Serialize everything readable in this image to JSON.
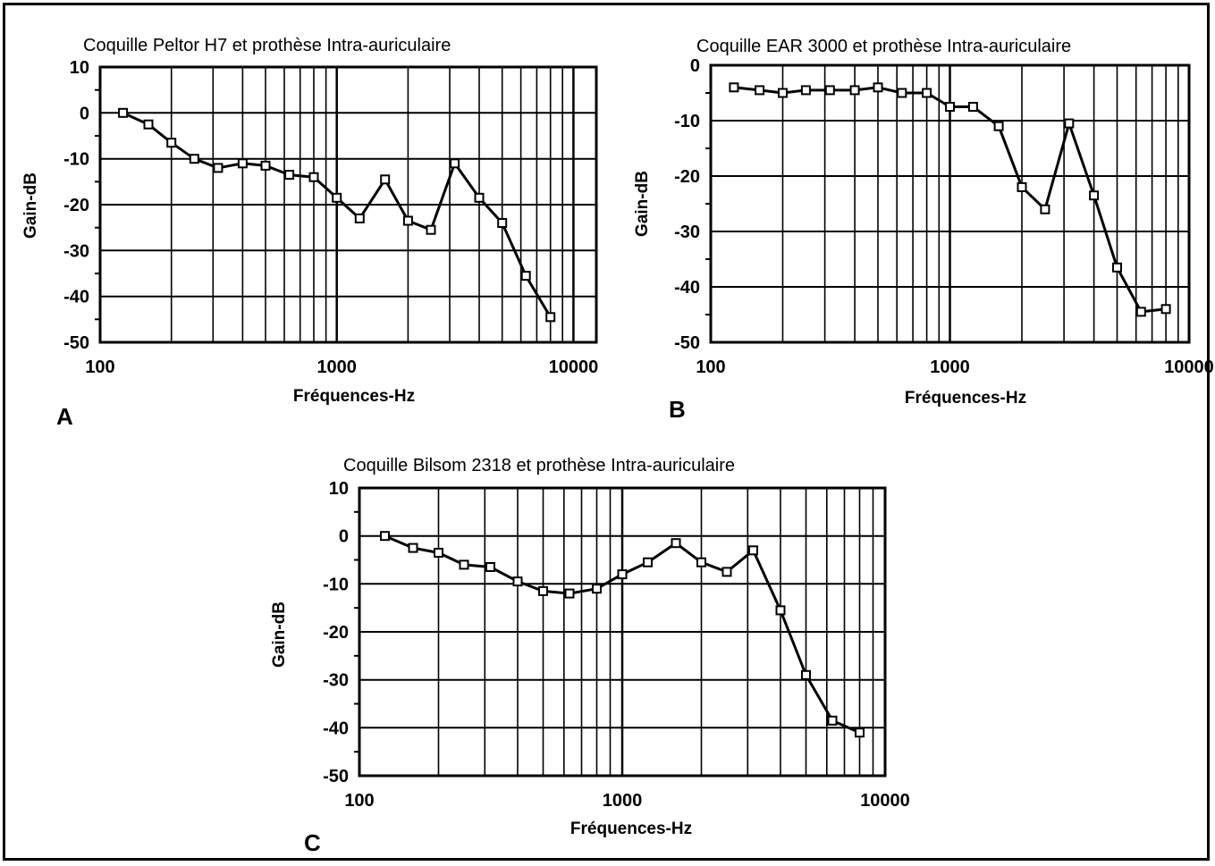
{
  "chart_data": [
    {
      "panel": "A",
      "type": "line",
      "title": "Coquille Peltor H7 et prothèse Intra-auriculaire",
      "xlabel": "Fréquences-Hz",
      "ylabel": "Gain-dB",
      "xscale": "log",
      "xlim": [
        100,
        12500
      ],
      "ylim": [
        -50,
        10
      ],
      "xticks": [
        100,
        1000,
        10000
      ],
      "yticks": [
        10,
        0,
        -10,
        -20,
        -30,
        -40,
        -50
      ],
      "x": [
        125,
        160,
        200,
        250,
        315,
        400,
        500,
        630,
        800,
        1000,
        1250,
        1600,
        2000,
        2500,
        3150,
        4000,
        5000,
        6300,
        8000
      ],
      "y": [
        0,
        -2.5,
        -6.5,
        -10,
        -12,
        -11,
        -11.5,
        -13.5,
        -14,
        -18.5,
        -23,
        -14.5,
        -23.5,
        -25.5,
        -11,
        -18.5,
        -24,
        -35.5,
        -44.5
      ]
    },
    {
      "panel": "B",
      "type": "line",
      "title": "Coquille EAR 3000 et prothèse Intra-auriculaire",
      "xlabel": "Fréquences-Hz",
      "ylabel": "Gain-dB",
      "xscale": "log",
      "xlim": [
        100,
        10000
      ],
      "ylim": [
        -50,
        0
      ],
      "xticks": [
        100,
        1000,
        10000
      ],
      "yticks": [
        0,
        -10,
        -20,
        -30,
        -40,
        -50
      ],
      "x": [
        125,
        160,
        200,
        250,
        315,
        400,
        500,
        630,
        800,
        1000,
        1250,
        1600,
        2000,
        2500,
        3150,
        4000,
        5000,
        6300,
        8000
      ],
      "y": [
        -4,
        -4.5,
        -5,
        -4.5,
        -4.5,
        -4.5,
        -4,
        -5,
        -5,
        -7.5,
        -7.5,
        -11,
        -22,
        -26,
        -10.5,
        -23.5,
        -36.5,
        -44.5,
        -44
      ]
    },
    {
      "panel": "C",
      "type": "line",
      "title": "Coquille Bilsom 2318 et prothèse Intra-auriculaire",
      "xlabel": "Fréquences-Hz",
      "ylabel": "Gain-dB",
      "xscale": "log",
      "xlim": [
        100,
        10000
      ],
      "ylim": [
        -50,
        10
      ],
      "xticks": [
        100,
        1000,
        10000
      ],
      "yticks": [
        10,
        0,
        -10,
        -20,
        -30,
        -40,
        -50
      ],
      "x": [
        125,
        160,
        200,
        250,
        315,
        400,
        500,
        630,
        800,
        1000,
        1250,
        1600,
        2000,
        2500,
        3150,
        4000,
        5000,
        6300,
        8000
      ],
      "y": [
        0,
        -2.5,
        -3.5,
        -6,
        -6.5,
        -9.5,
        -11.5,
        -12,
        -11,
        -8,
        -5.5,
        -1.5,
        -5.5,
        -7.5,
        -3,
        -15.5,
        -29,
        -38.5,
        -41
      ]
    }
  ]
}
